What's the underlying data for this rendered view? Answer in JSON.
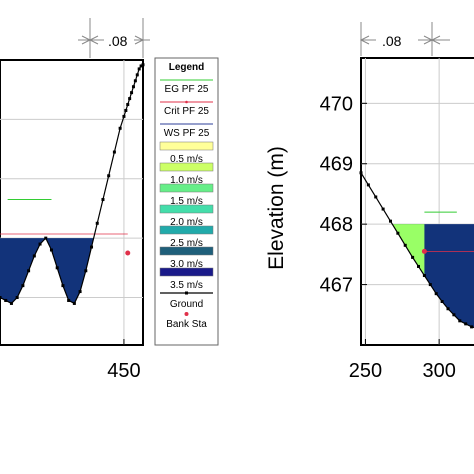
{
  "chart_data": [
    {
      "type": "area",
      "xlabel": "",
      "ylabel": "",
      "xlim": [
        385,
        460
      ],
      "ylim": [
        466.2,
        471
      ],
      "x_ticks": [
        450
      ],
      "dimension_label": ".08",
      "ws_elevation": 468.0,
      "eg_elevation": 468.65,
      "crit_elevation": 468.07,
      "grid": true,
      "legend_position": "right",
      "ground": {
        "x": [
          385,
          388,
          391,
          394,
          397,
          400,
          403,
          406,
          409,
          412,
          415,
          418,
          421,
          424,
          427,
          430,
          433,
          436,
          439,
          442,
          445,
          448,
          450,
          451,
          452,
          453,
          454,
          455,
          456,
          457,
          458,
          459,
          460
        ],
        "y": [
          467.0,
          466.95,
          466.9,
          467.0,
          467.2,
          467.45,
          467.7,
          467.9,
          468.0,
          467.8,
          467.5,
          467.2,
          466.95,
          466.9,
          467.1,
          467.45,
          467.85,
          468.25,
          468.65,
          469.05,
          469.45,
          469.85,
          470.05,
          470.15,
          470.25,
          470.35,
          470.45,
          470.55,
          470.65,
          470.75,
          470.85,
          470.9,
          470.92
        ]
      },
      "bank_stations": [
        {
          "x": 452,
          "y": 467.75
        }
      ]
    },
    {
      "type": "area",
      "xlabel": "",
      "ylabel": "Elevation (m)",
      "xlim": [
        247,
        325
      ],
      "ylim": [
        466.0,
        470.75
      ],
      "x_ticks": [
        250,
        300
      ],
      "y_ticks": [
        467,
        468,
        469,
        470
      ],
      "dimension_label": ".08",
      "ws_elevation": 468.0,
      "eg_elevation": 468.2,
      "crit_elevation": 467.55,
      "grid": true,
      "ground": {
        "x": [
          247,
          252,
          257,
          262,
          267,
          272,
          277,
          282,
          286,
          290,
          294,
          298,
          302,
          306,
          310,
          314,
          318,
          322,
          325
        ],
        "y": [
          468.85,
          468.65,
          468.45,
          468.25,
          468.05,
          467.85,
          467.65,
          467.45,
          467.3,
          467.15,
          467.0,
          466.85,
          466.72,
          466.6,
          466.5,
          466.4,
          466.35,
          466.3,
          466.28
        ]
      },
      "bank_stations": [
        {
          "x": 290,
          "y": 467.55
        }
      ]
    }
  ],
  "legend": {
    "title": "Legend",
    "items": [
      {
        "label": "EG PF 25",
        "kind": "line",
        "color": "#33cc33"
      },
      {
        "label": "Crit PF 25",
        "kind": "line-dot",
        "color": "#e0304a"
      },
      {
        "label": "WS PF 25",
        "kind": "line",
        "color": "#2e3f9a"
      },
      {
        "label": "0.5 m/s",
        "kind": "swatch",
        "color": "#ffff99"
      },
      {
        "label": "1.0 m/s",
        "kind": "swatch",
        "color": "#ccff66"
      },
      {
        "label": "1.5 m/s",
        "kind": "swatch",
        "color": "#66ee88"
      },
      {
        "label": "2.0 m/s",
        "kind": "swatch",
        "color": "#44ddaa"
      },
      {
        "label": "2.5 m/s",
        "kind": "swatch",
        "color": "#22aaaa"
      },
      {
        "label": "3.0 m/s",
        "kind": "swatch",
        "color": "#1f5f7a"
      },
      {
        "label": "3.5 m/s",
        "kind": "swatch",
        "color": "#1a1a8a"
      },
      {
        "label": "Ground",
        "kind": "ground",
        "color": "#000000"
      },
      {
        "label": "Bank Sta",
        "kind": "dot",
        "color": "#e0304a"
      }
    ]
  },
  "colors": {
    "water_left": "#12337a",
    "water_right": "#12337a",
    "water_right_shallow": "#99ff66",
    "eg_line": "#33cc33",
    "crit_line": "#e0304a"
  }
}
